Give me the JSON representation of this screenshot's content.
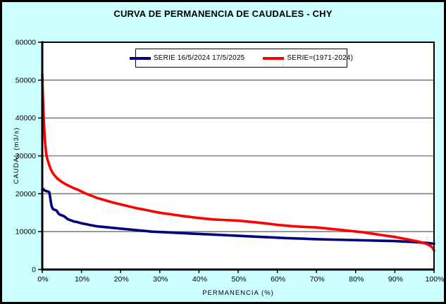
{
  "title": "CURVA DE PERMANENCIA DE CAUDALES - CHY",
  "colors": {
    "background": "#CCFFFF",
    "plot_background": "#FFFFFF",
    "gridline": "#808080",
    "axis": "#000000",
    "series_blue": "#000080",
    "series_red": "#FF0000"
  },
  "chart_data": {
    "type": "line",
    "title": "CURVA DE PERMANENCIA DE CAUDALES - CHY",
    "xlabel": "PERMANENCIA (%)",
    "ylabel": "CAUDAL (m3/s)",
    "xlim": [
      0,
      100
    ],
    "ylim": [
      0,
      60000
    ],
    "x_tick_values": [
      0,
      10,
      20,
      30,
      40,
      50,
      60,
      70,
      80,
      90,
      100
    ],
    "x_tick_labels": [
      "0%",
      "10%",
      "20%",
      "30%",
      "40%",
      "50%",
      "60%",
      "70%",
      "80%",
      "90%",
      "100%"
    ],
    "y_tick_values": [
      0,
      10000,
      20000,
      30000,
      40000,
      50000,
      60000
    ],
    "y_tick_labels": [
      "0",
      "10000",
      "20000",
      "30000",
      "40000",
      "50000",
      "60000"
    ],
    "grid": "horizontal-only",
    "legend_position": "top-center-inside",
    "series": [
      {
        "name": "SERIE 16/5/2024 17/5/2025",
        "color": "#000080",
        "points": [
          [
            0,
            21000
          ],
          [
            0.3,
            21200
          ],
          [
            0.6,
            20900
          ],
          [
            1,
            20700
          ],
          [
            1.5,
            20600
          ],
          [
            1.8,
            20400
          ],
          [
            2,
            19200
          ],
          [
            2.2,
            17800
          ],
          [
            2.4,
            16700
          ],
          [
            2.7,
            16000
          ],
          [
            3,
            15800
          ],
          [
            3.4,
            15700
          ],
          [
            3.7,
            15500
          ],
          [
            4,
            15000
          ],
          [
            4.3,
            14600
          ],
          [
            4.7,
            14400
          ],
          [
            5,
            14300
          ],
          [
            5.5,
            14100
          ],
          [
            6,
            13700
          ],
          [
            6.5,
            13300
          ],
          [
            7,
            13100
          ],
          [
            7.5,
            12900
          ],
          [
            8,
            12700
          ],
          [
            9,
            12500
          ],
          [
            10,
            12200
          ],
          [
            11,
            12000
          ],
          [
            12,
            11800
          ],
          [
            13,
            11600
          ],
          [
            14,
            11400
          ],
          [
            15,
            11300
          ],
          [
            16,
            11200
          ],
          [
            17,
            11100
          ],
          [
            18,
            11000
          ],
          [
            19,
            10900
          ],
          [
            20,
            10800
          ],
          [
            22,
            10600
          ],
          [
            24,
            10400
          ],
          [
            26,
            10200
          ],
          [
            28,
            10000
          ],
          [
            30,
            9900
          ],
          [
            32,
            9800
          ],
          [
            34,
            9700
          ],
          [
            36,
            9600
          ],
          [
            38,
            9500
          ],
          [
            40,
            9400
          ],
          [
            43,
            9250
          ],
          [
            46,
            9100
          ],
          [
            50,
            8900
          ],
          [
            54,
            8700
          ],
          [
            58,
            8500
          ],
          [
            62,
            8300
          ],
          [
            66,
            8150
          ],
          [
            70,
            8000
          ],
          [
            74,
            7900
          ],
          [
            78,
            7800
          ],
          [
            82,
            7700
          ],
          [
            86,
            7600
          ],
          [
            90,
            7500
          ],
          [
            93,
            7350
          ],
          [
            95,
            7250
          ],
          [
            97,
            7100
          ],
          [
            99,
            6950
          ],
          [
            100,
            6800
          ]
        ]
      },
      {
        "name": "SERIE=(1971-2024)",
        "color": "#FF0000",
        "points": [
          [
            0,
            51500
          ],
          [
            0.15,
            46000
          ],
          [
            0.3,
            41500
          ],
          [
            0.5,
            37000
          ],
          [
            0.7,
            33800
          ],
          [
            0.9,
            31500
          ],
          [
            1.1,
            30000
          ],
          [
            1.4,
            28800
          ],
          [
            1.8,
            27500
          ],
          [
            2.2,
            26400
          ],
          [
            2.6,
            25600
          ],
          [
            3,
            25000
          ],
          [
            3.5,
            24400
          ],
          [
            4,
            23900
          ],
          [
            4.5,
            23500
          ],
          [
            5,
            23100
          ],
          [
            6,
            22500
          ],
          [
            7,
            22000
          ],
          [
            8,
            21500
          ],
          [
            9,
            21100
          ],
          [
            10,
            20600
          ],
          [
            11,
            20100
          ],
          [
            12,
            19700
          ],
          [
            13,
            19300
          ],
          [
            14,
            18900
          ],
          [
            15,
            18600
          ],
          [
            16,
            18300
          ],
          [
            17,
            18000
          ],
          [
            18,
            17700
          ],
          [
            19,
            17450
          ],
          [
            20,
            17200
          ],
          [
            22,
            16700
          ],
          [
            24,
            16200
          ],
          [
            26,
            15800
          ],
          [
            28,
            15400
          ],
          [
            30,
            15000
          ],
          [
            32,
            14700
          ],
          [
            34,
            14400
          ],
          [
            36,
            14100
          ],
          [
            38,
            13850
          ],
          [
            40,
            13600
          ],
          [
            42,
            13400
          ],
          [
            44,
            13200
          ],
          [
            46,
            13100
          ],
          [
            48,
            13000
          ],
          [
            50,
            12900
          ],
          [
            52,
            12700
          ],
          [
            54,
            12500
          ],
          [
            56,
            12300
          ],
          [
            58,
            12050
          ],
          [
            60,
            11800
          ],
          [
            62,
            11600
          ],
          [
            64,
            11450
          ],
          [
            66,
            11300
          ],
          [
            68,
            11200
          ],
          [
            70,
            11100
          ],
          [
            72,
            10900
          ],
          [
            74,
            10700
          ],
          [
            76,
            10500
          ],
          [
            78,
            10250
          ],
          [
            80,
            10050
          ],
          [
            82,
            9800
          ],
          [
            84,
            9500
          ],
          [
            86,
            9200
          ],
          [
            88,
            8900
          ],
          [
            90,
            8600
          ],
          [
            92,
            8200
          ],
          [
            94,
            7800
          ],
          [
            95,
            7600
          ],
          [
            96,
            7400
          ],
          [
            97,
            7100
          ],
          [
            98,
            6800
          ],
          [
            99,
            6300
          ],
          [
            99.5,
            5900
          ],
          [
            100,
            5100
          ]
        ]
      }
    ]
  }
}
